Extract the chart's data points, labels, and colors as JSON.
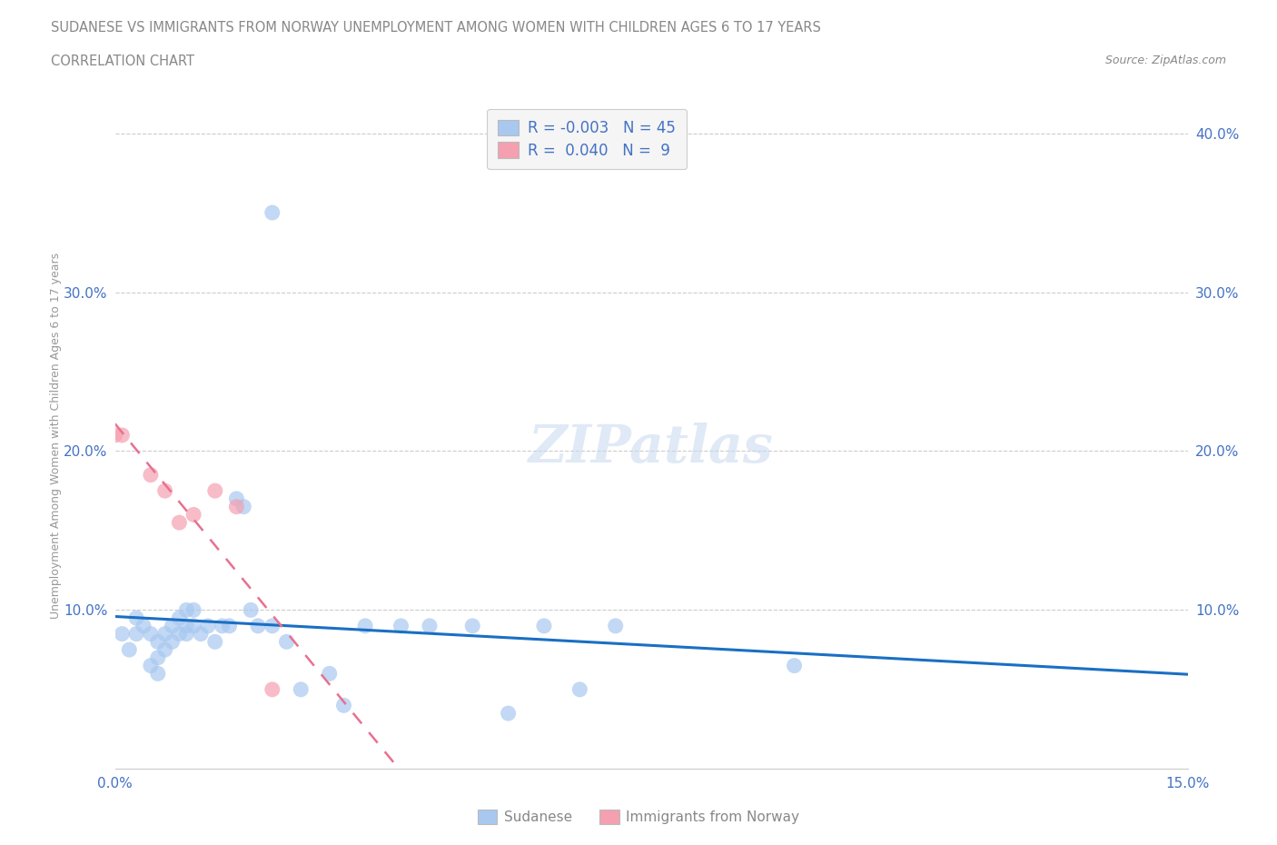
{
  "title_line1": "SUDANESE VS IMMIGRANTS FROM NORWAY UNEMPLOYMENT AMONG WOMEN WITH CHILDREN AGES 6 TO 17 YEARS",
  "title_line2": "CORRELATION CHART",
  "source_text": "Source: ZipAtlas.com",
  "ylabel": "Unemployment Among Women with Children Ages 6 to 17 years",
  "xlim": [
    0.0,
    0.15
  ],
  "ylim": [
    0.0,
    0.42
  ],
  "xticks": [
    0.0,
    0.03,
    0.06,
    0.09,
    0.12,
    0.15
  ],
  "yticks": [
    0.0,
    0.1,
    0.2,
    0.3,
    0.4
  ],
  "grid_color": "#cccccc",
  "background_color": "#ffffff",
  "watermark": "ZIPatlas",
  "sudanese_x": [
    0.001,
    0.002,
    0.003,
    0.003,
    0.004,
    0.005,
    0.005,
    0.006,
    0.006,
    0.006,
    0.007,
    0.007,
    0.008,
    0.008,
    0.009,
    0.009,
    0.01,
    0.01,
    0.01,
    0.011,
    0.011,
    0.012,
    0.013,
    0.014,
    0.015,
    0.016,
    0.017,
    0.018,
    0.019,
    0.02,
    0.022,
    0.024,
    0.026,
    0.03,
    0.032,
    0.035,
    0.04,
    0.044,
    0.05,
    0.055,
    0.06,
    0.065,
    0.07,
    0.095,
    0.022
  ],
  "sudanese_y": [
    0.085,
    0.075,
    0.095,
    0.085,
    0.09,
    0.085,
    0.065,
    0.08,
    0.07,
    0.06,
    0.085,
    0.075,
    0.09,
    0.08,
    0.095,
    0.085,
    0.1,
    0.09,
    0.085,
    0.1,
    0.09,
    0.085,
    0.09,
    0.08,
    0.09,
    0.09,
    0.17,
    0.165,
    0.1,
    0.09,
    0.09,
    0.08,
    0.05,
    0.06,
    0.04,
    0.09,
    0.09,
    0.09,
    0.09,
    0.035,
    0.09,
    0.05,
    0.09,
    0.065,
    0.35
  ],
  "norway_x": [
    0.0,
    0.001,
    0.005,
    0.007,
    0.009,
    0.011,
    0.014,
    0.017,
    0.022
  ],
  "norway_y": [
    0.21,
    0.21,
    0.185,
    0.175,
    0.155,
    0.16,
    0.175,
    0.165,
    0.05
  ],
  "sudanese_color": "#a8c8f0",
  "norway_color": "#f5a0b0",
  "sudanese_trend_color": "#1a6fc4",
  "norway_trend_color": "#e87090",
  "sudanese_R": -0.003,
  "sudanese_N": 45,
  "norway_R": 0.04,
  "norway_N": 9,
  "legend_label_sudanese": "Sudanese",
  "legend_label_norway": "Immigrants from Norway",
  "axis_label_color": "#4472c4",
  "tick_color": "#4472c4"
}
